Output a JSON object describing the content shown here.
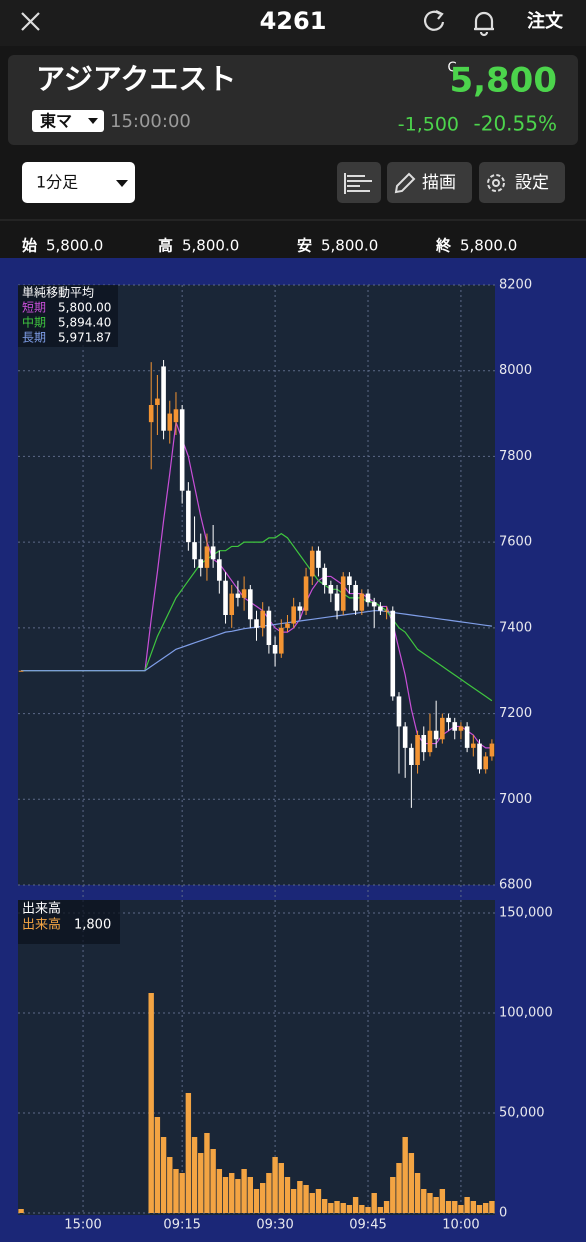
{
  "header": {
    "symbol": "4261",
    "order": "注文"
  },
  "stock": {
    "name": "アジアクエスト",
    "market": "東マ",
    "time": "15:00:00",
    "price_flag": "C",
    "price": "5,800",
    "change": "-1,500",
    "change_pct": "-20.55%"
  },
  "toolbar": {
    "interval": "1分足",
    "draw": "描画",
    "settings": "設定"
  },
  "ohlc_bar": [
    {
      "label": "始",
      "value": "5,800.0"
    },
    {
      "label": "高",
      "value": "5,800.0"
    },
    {
      "label": "安",
      "value": "5,800.0"
    },
    {
      "label": "終",
      "value": "5,800.0"
    }
  ],
  "chart_data": [
    {
      "type": "candlestick",
      "legend_title": "単純移動平均",
      "ylim": [
        6800,
        8200
      ],
      "yticks": [
        6800,
        7000,
        7200,
        7400,
        7600,
        7800,
        8000,
        8200
      ],
      "grid": true,
      "up_color": "#f39433",
      "down_color": "#ffffff",
      "ohlc": {
        "open": [
          7300,
          null,
          null,
          null,
          null,
          null,
          null,
          null,
          null,
          null,
          null,
          null,
          null,
          null,
          null,
          null,
          null,
          null,
          null,
          null,
          null,
          7880,
          7920,
          8010,
          7860,
          7880,
          7910,
          7720,
          7600,
          7560,
          7540,
          7590,
          7560,
          7510,
          7430,
          7480,
          7470,
          7490,
          7420,
          7400,
          7440,
          7360,
          7340,
          7400,
          7410,
          7450,
          7440,
          7520,
          7580,
          7540,
          7500,
          7480,
          7440,
          7520,
          7500,
          7440,
          7480,
          7460,
          7450,
          7440,
          7440,
          7240,
          7170,
          7120,
          7080,
          7150,
          7110,
          7160,
          7140,
          7190,
          7180,
          7160,
          7170,
          7120,
          7130,
          7070,
          7100
        ],
        "high": [
          7300,
          null,
          null,
          null,
          null,
          null,
          null,
          null,
          null,
          null,
          null,
          null,
          null,
          null,
          null,
          null,
          null,
          null,
          null,
          null,
          null,
          8020,
          7990,
          8025,
          7930,
          7950,
          7920,
          7740,
          7660,
          7620,
          7620,
          7640,
          7580,
          7530,
          7500,
          7510,
          7520,
          7500,
          7440,
          7460,
          7450,
          7380,
          7420,
          7430,
          7470,
          7460,
          7540,
          7590,
          7590,
          7550,
          7510,
          7500,
          7530,
          7530,
          7510,
          7490,
          7490,
          7470,
          7460,
          7450,
          7450,
          7250,
          7180,
          7130,
          7160,
          7170,
          7200,
          7230,
          7200,
          7200,
          7190,
          7180,
          7180,
          7150,
          7140,
          7110,
          7140
        ],
        "low": [
          7300,
          null,
          null,
          null,
          null,
          null,
          null,
          null,
          null,
          null,
          null,
          null,
          null,
          null,
          null,
          null,
          null,
          null,
          null,
          null,
          null,
          7770,
          7850,
          7840,
          7830,
          7850,
          7690,
          7580,
          7540,
          7520,
          7510,
          7540,
          7480,
          7410,
          7400,
          7450,
          7440,
          7400,
          7370,
          7380,
          7340,
          7310,
          7330,
          7390,
          7400,
          7420,
          7430,
          7500,
          7520,
          7480,
          7460,
          7420,
          7430,
          7480,
          7430,
          7430,
          7450,
          7400,
          7430,
          7420,
          7230,
          7060,
          7050,
          6980,
          7060,
          7090,
          7100,
          7120,
          7130,
          7160,
          7140,
          7140,
          7110,
          7100,
          7060,
          7060,
          7090
        ],
        "close": [
          7300,
          null,
          null,
          null,
          null,
          null,
          null,
          null,
          null,
          null,
          null,
          null,
          null,
          null,
          null,
          null,
          null,
          null,
          null,
          null,
          null,
          7920,
          7935,
          7860,
          7900,
          7910,
          7720,
          7600,
          7560,
          7540,
          7590,
          7560,
          7510,
          7430,
          7480,
          7470,
          7490,
          7420,
          7400,
          7440,
          7360,
          7340,
          7400,
          7410,
          7450,
          7440,
          7520,
          7580,
          7540,
          7500,
          7480,
          7440,
          7520,
          7500,
          7440,
          7480,
          7460,
          7450,
          7440,
          7440,
          7240,
          7170,
          7120,
          7080,
          7150,
          7110,
          7160,
          7140,
          7190,
          7180,
          7160,
          7170,
          7120,
          7130,
          7070,
          7100,
          7130
        ]
      },
      "series": [
        {
          "name": "短期",
          "color": "#c84fd8",
          "legend_value": "5,800.00",
          "values": [
            7300,
            7300,
            7300,
            7300,
            7300,
            7300,
            7300,
            7300,
            7300,
            7300,
            7300,
            7300,
            7300,
            7300,
            7300,
            7300,
            7300,
            7300,
            7300,
            7300,
            7300,
            7420,
            7530,
            7650,
            7760,
            7880,
            7840,
            7800,
            7730,
            7660,
            7600,
            7560,
            7550,
            7530,
            7510,
            7490,
            7470,
            7460,
            7450,
            7440,
            7420,
            7400,
            7390,
            7390,
            7400,
            7420,
            7460,
            7490,
            7510,
            7520,
            7520,
            7510,
            7500,
            7480,
            7480,
            7480,
            7470,
            7460,
            7450,
            7450,
            7410,
            7350,
            7290,
            7210,
            7150,
            7130,
            7130,
            7130,
            7150,
            7160,
            7170,
            7170,
            7160,
            7150,
            7130,
            7120,
            7120
          ]
        },
        {
          "name": "中期",
          "color": "#3fc63f",
          "legend_value": "5,894.40",
          "values": [
            7300,
            7300,
            7300,
            7300,
            7300,
            7300,
            7300,
            7300,
            7300,
            7300,
            7300,
            7300,
            7300,
            7300,
            7300,
            7300,
            7300,
            7300,
            7300,
            7300,
            7300,
            7340,
            7380,
            7410,
            7440,
            7470,
            7490,
            7510,
            7530,
            7550,
            7560,
            7570,
            7580,
            7580,
            7590,
            7590,
            7600,
            7600,
            7600,
            7600,
            7610,
            7610,
            7620,
            7610,
            7590,
            7570,
            7550,
            7530,
            7510,
            7500,
            7490,
            7490,
            7480,
            7470,
            7470,
            7470,
            7460,
            7460,
            7450,
            7440,
            7420,
            7400,
            7390,
            7370,
            7350,
            7340,
            7330,
            7320,
            7310,
            7300,
            7290,
            7280,
            7270,
            7260,
            7250,
            7240,
            7230
          ]
        },
        {
          "name": "長期",
          "color": "#7f9ee8",
          "legend_value": "5,971.87",
          "values": [
            7300,
            7300,
            7300,
            7300,
            7300,
            7300,
            7300,
            7300,
            7300,
            7300,
            7300,
            7300,
            7300,
            7300,
            7300,
            7300,
            7300,
            7300,
            7300,
            7300,
            7300,
            7310,
            7320,
            7330,
            7340,
            7350,
            7355,
            7360,
            7365,
            7370,
            7375,
            7380,
            7385,
            7390,
            7392,
            7395,
            7398,
            7400,
            7402,
            7404,
            7406,
            7408,
            7410,
            7412,
            7414,
            7416,
            7418,
            7420,
            7422,
            7424,
            7426,
            7428,
            7430,
            7432,
            7434,
            7436,
            7438,
            7440,
            7440,
            7438,
            7436,
            7434,
            7432,
            7430,
            7428,
            7426,
            7424,
            7422,
            7420,
            7418,
            7416,
            7414,
            7412,
            7410,
            7408,
            7406,
            7404
          ]
        }
      ]
    },
    {
      "type": "bar",
      "title": "出来高",
      "ylim": [
        0,
        155000
      ],
      "yticks": [
        0,
        {
          "value": 50000,
          "label": "50,000"
        },
        {
          "value": 100000,
          "label": "100,000"
        },
        {
          "value": 150000,
          "label": "150,000"
        }
      ],
      "grid": true,
      "categories": [
        null,
        null,
        null,
        null,
        null,
        null,
        null,
        null,
        null,
        null,
        "15:00",
        null,
        null,
        null,
        null,
        null,
        null,
        null,
        null,
        null,
        null,
        null,
        null,
        null,
        null,
        null,
        "09:15",
        null,
        null,
        null,
        null,
        null,
        null,
        null,
        null,
        null,
        null,
        null,
        null,
        null,
        null,
        "09:30",
        null,
        null,
        null,
        null,
        null,
        null,
        null,
        null,
        null,
        null,
        null,
        null,
        null,
        null,
        "09:45",
        null,
        null,
        null,
        null,
        null,
        null,
        null,
        null,
        null,
        null,
        null,
        null,
        null,
        null,
        "10:00",
        null,
        null,
        null,
        null,
        null
      ],
      "series": [
        {
          "name": "出来高",
          "color": "#f3a443",
          "legend_value": "1,800",
          "values": [
            2000,
            null,
            null,
            null,
            null,
            null,
            null,
            null,
            null,
            null,
            null,
            null,
            null,
            null,
            null,
            null,
            null,
            null,
            null,
            null,
            null,
            110000,
            48000,
            38000,
            28000,
            22000,
            20000,
            60000,
            38000,
            30000,
            40000,
            32000,
            22000,
            18000,
            20000,
            17000,
            22000,
            18000,
            12000,
            15000,
            20000,
            28000,
            25000,
            18000,
            12000,
            16000,
            14000,
            10000,
            12000,
            7000,
            5000,
            6000,
            5000,
            4000,
            8000,
            4000,
            3000,
            10000,
            3000,
            6000,
            18000,
            25000,
            38000,
            30000,
            20000,
            12000,
            10000,
            8000,
            12000,
            6000,
            6000,
            4000,
            8000,
            6000,
            4000,
            5000,
            6000
          ]
        }
      ]
    }
  ]
}
